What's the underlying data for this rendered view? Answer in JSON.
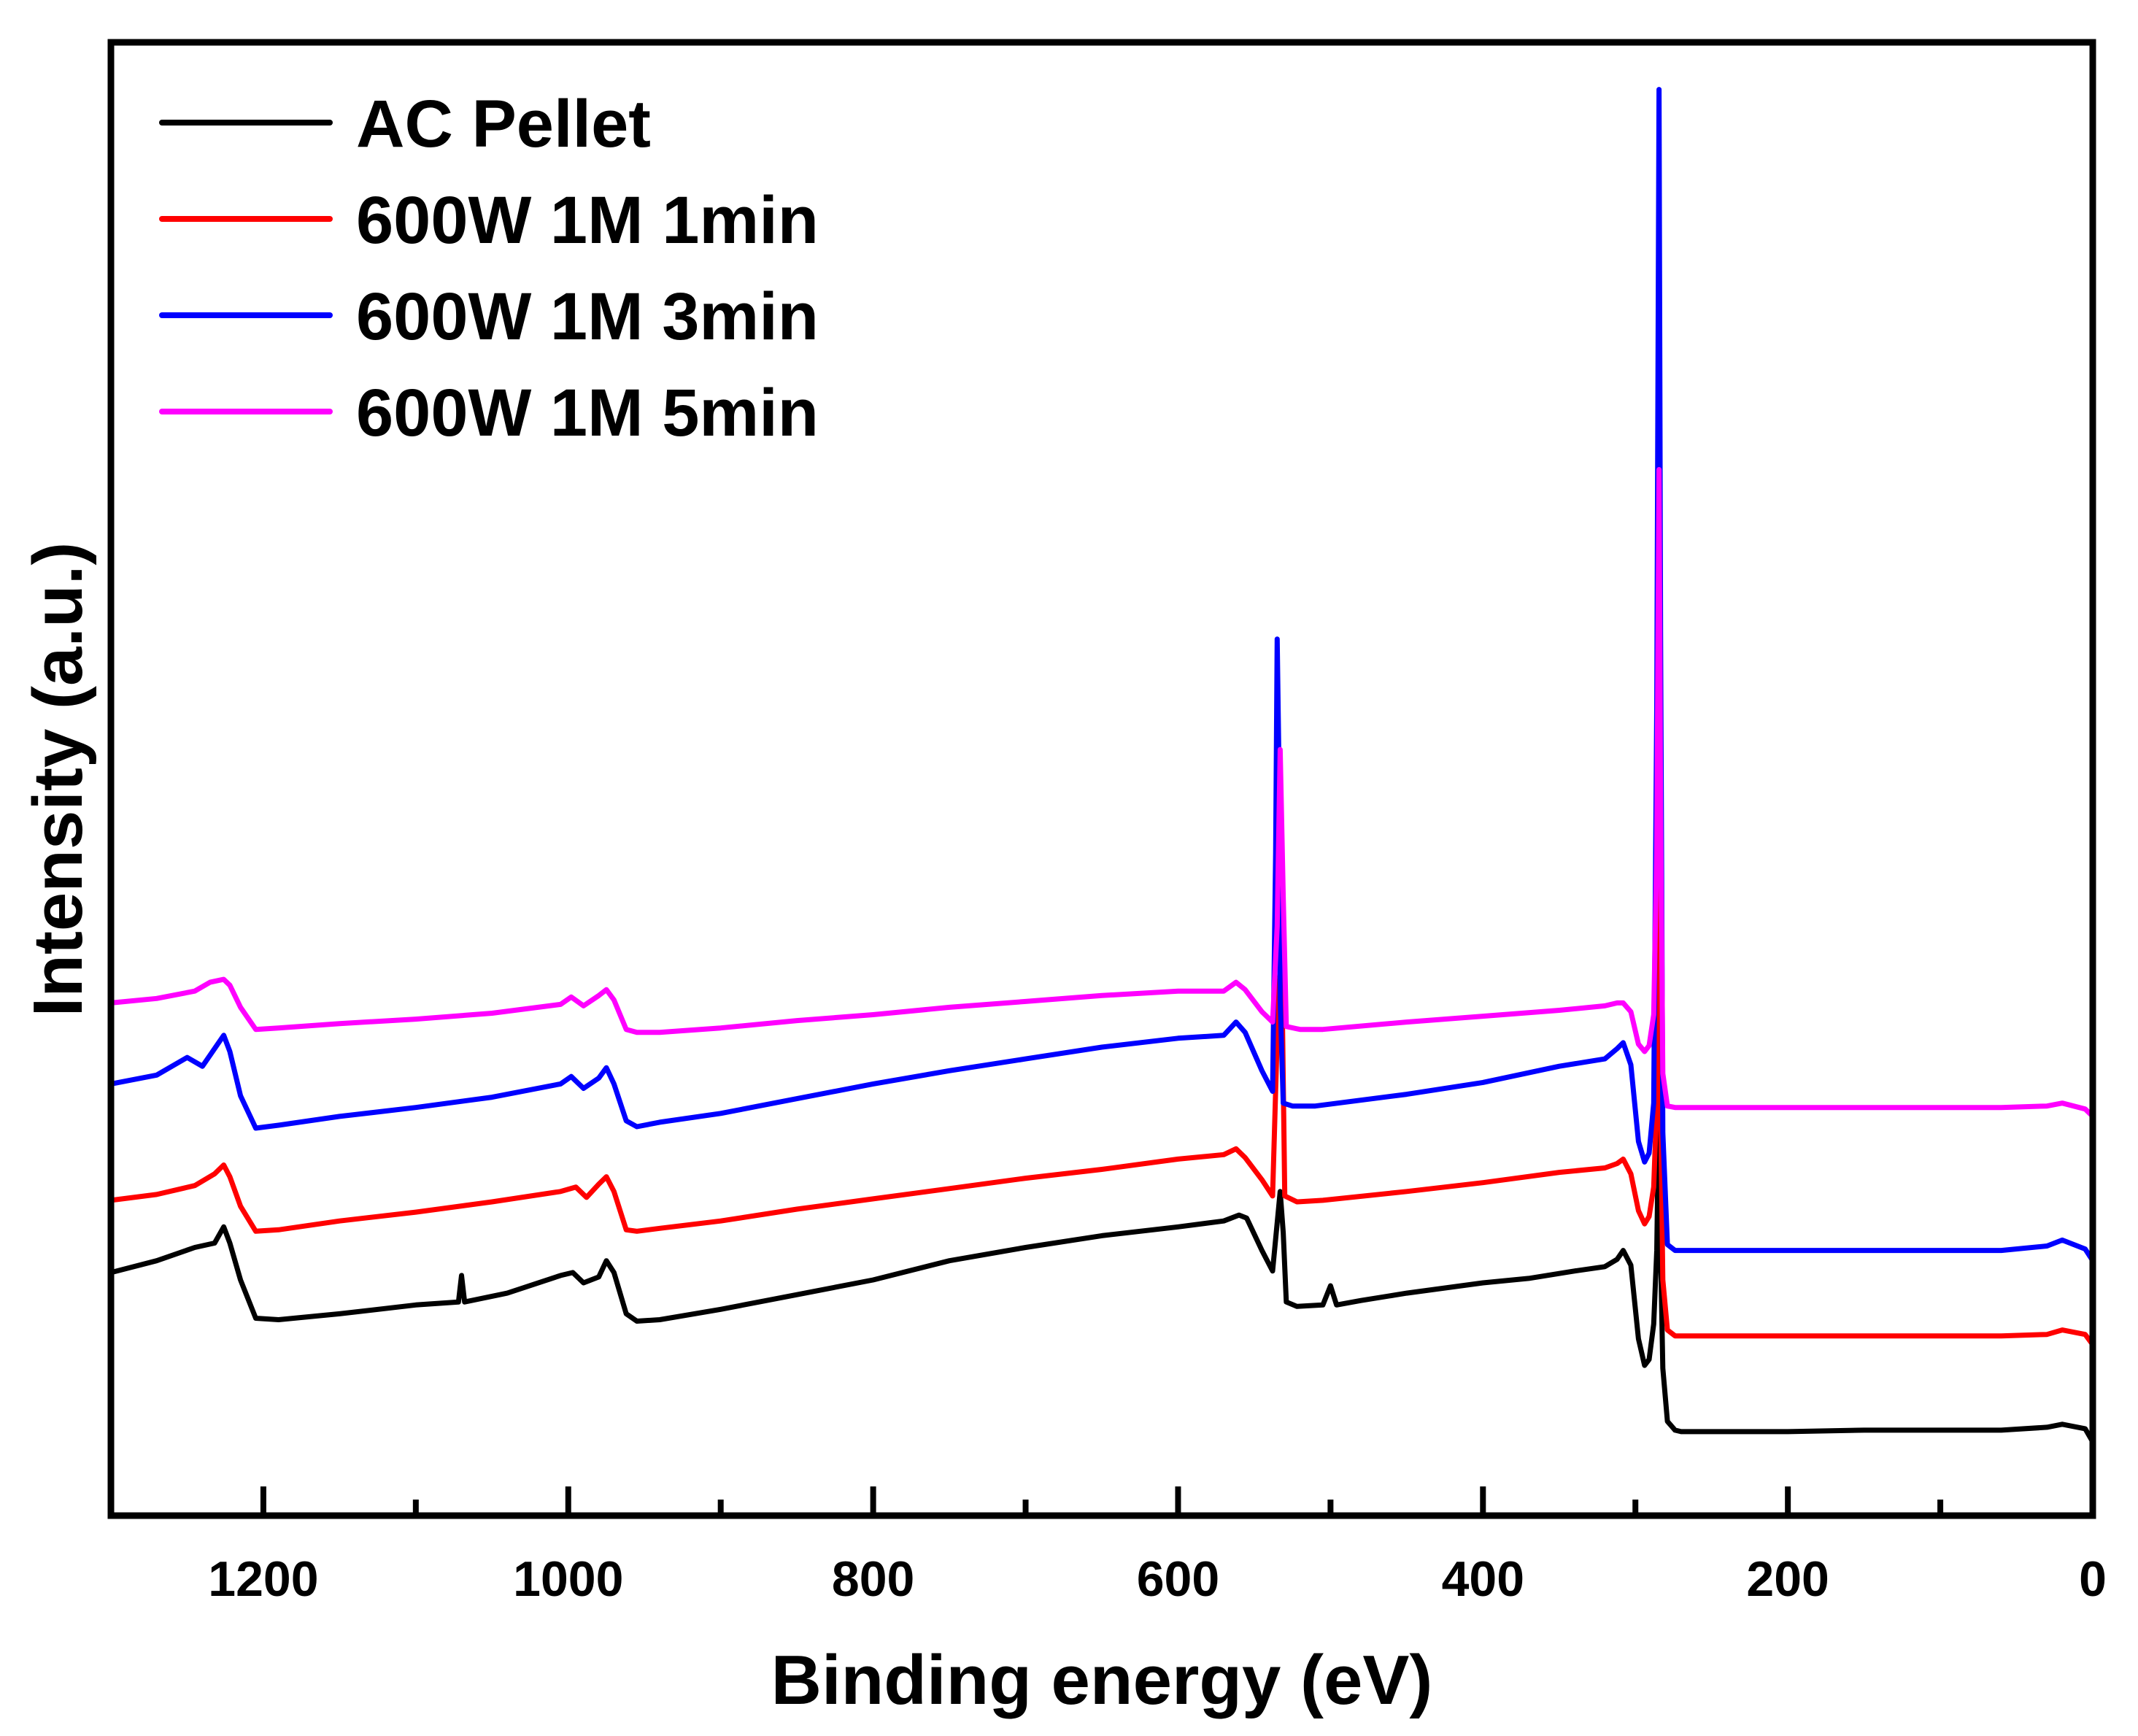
{
  "chart_data": {
    "type": "line",
    "title": "",
    "xlabel": "Binding energy (eV)",
    "ylabel": "Intensity (a.u.)",
    "xlim": [
      1300,
      0
    ],
    "ylim": [
      0,
      100
    ],
    "x_reversed": true,
    "xticks": [
      1200,
      1000,
      800,
      600,
      400,
      200,
      0
    ],
    "xticks_minor": [
      1100,
      900,
      700,
      500,
      300,
      100
    ],
    "yticks": [],
    "grid": false,
    "legend_position": "top-left",
    "series": [
      {
        "name": "AC Pellet",
        "color": "#000000",
        "points": [
          [
            1300,
            16.5
          ],
          [
            1270,
            17.3
          ],
          [
            1245,
            18.2
          ],
          [
            1232,
            18.5
          ],
          [
            1226,
            19.6
          ],
          [
            1222,
            18.5
          ],
          [
            1215,
            16.0
          ],
          [
            1205,
            13.4
          ],
          [
            1190,
            13.3
          ],
          [
            1150,
            13.7
          ],
          [
            1100,
            14.3
          ],
          [
            1072,
            14.5
          ],
          [
            1070,
            16.3
          ],
          [
            1068,
            14.5
          ],
          [
            1040,
            15.1
          ],
          [
            1005,
            16.3
          ],
          [
            997,
            16.5
          ],
          [
            990,
            15.8
          ],
          [
            980,
            16.2
          ],
          [
            975,
            17.3
          ],
          [
            970,
            16.5
          ],
          [
            962,
            13.7
          ],
          [
            955,
            13.2
          ],
          [
            940,
            13.3
          ],
          [
            900,
            14.0
          ],
          [
            850,
            15.0
          ],
          [
            800,
            16.0
          ],
          [
            750,
            17.3
          ],
          [
            700,
            18.2
          ],
          [
            650,
            19.0
          ],
          [
            600,
            19.6
          ],
          [
            570,
            20.0
          ],
          [
            560,
            20.4
          ],
          [
            555,
            20.2
          ],
          [
            545,
            18.0
          ],
          [
            538,
            16.6
          ],
          [
            533,
            22.0
          ],
          [
            531,
            19.2
          ],
          [
            529,
            14.5
          ],
          [
            522,
            14.2
          ],
          [
            505,
            14.3
          ],
          [
            500,
            15.6
          ],
          [
            496,
            14.3
          ],
          [
            480,
            14.6
          ],
          [
            450,
            15.1
          ],
          [
            400,
            15.8
          ],
          [
            370,
            16.1
          ],
          [
            340,
            16.6
          ],
          [
            320,
            16.9
          ],
          [
            312,
            17.4
          ],
          [
            308,
            18.0
          ],
          [
            303,
            17.0
          ],
          [
            298,
            12.0
          ],
          [
            294,
            10.2
          ],
          [
            291,
            10.6
          ],
          [
            288,
            13.0
          ],
          [
            286,
            18.0
          ],
          [
            284.5,
            29.0
          ],
          [
            283.5,
            18.0
          ],
          [
            282,
            10.0
          ],
          [
            279,
            6.4
          ],
          [
            274,
            5.8
          ],
          [
            270,
            5.7
          ],
          [
            240,
            5.7
          ],
          [
            200,
            5.7
          ],
          [
            150,
            5.8
          ],
          [
            100,
            5.8
          ],
          [
            60,
            5.8
          ],
          [
            30,
            6.0
          ],
          [
            20,
            6.2
          ],
          [
            5,
            5.9
          ],
          [
            0,
            5.0
          ]
        ]
      },
      {
        "name": "600W 1M 1min",
        "color": "#ff0000",
        "points": [
          [
            1300,
            21.4
          ],
          [
            1270,
            21.8
          ],
          [
            1245,
            22.4
          ],
          [
            1232,
            23.2
          ],
          [
            1226,
            23.8
          ],
          [
            1222,
            23.0
          ],
          [
            1215,
            21.0
          ],
          [
            1205,
            19.3
          ],
          [
            1190,
            19.4
          ],
          [
            1150,
            20.0
          ],
          [
            1100,
            20.6
          ],
          [
            1050,
            21.3
          ],
          [
            1005,
            22.0
          ],
          [
            995,
            22.3
          ],
          [
            988,
            21.6
          ],
          [
            980,
            22.5
          ],
          [
            975,
            23.0
          ],
          [
            970,
            22.0
          ],
          [
            962,
            19.4
          ],
          [
            955,
            19.3
          ],
          [
            940,
            19.5
          ],
          [
            900,
            20.0
          ],
          [
            850,
            20.8
          ],
          [
            800,
            21.5
          ],
          [
            750,
            22.2
          ],
          [
            700,
            22.9
          ],
          [
            650,
            23.5
          ],
          [
            600,
            24.2
          ],
          [
            570,
            24.5
          ],
          [
            562,
            24.9
          ],
          [
            556,
            24.3
          ],
          [
            545,
            22.8
          ],
          [
            538,
            21.7
          ],
          [
            534,
            36.0
          ],
          [
            532,
            37.5
          ],
          [
            530,
            21.7
          ],
          [
            522,
            21.3
          ],
          [
            505,
            21.4
          ],
          [
            450,
            22.0
          ],
          [
            400,
            22.6
          ],
          [
            350,
            23.3
          ],
          [
            320,
            23.6
          ],
          [
            312,
            23.9
          ],
          [
            308,
            24.2
          ],
          [
            303,
            23.2
          ],
          [
            298,
            20.7
          ],
          [
            294,
            19.8
          ],
          [
            291,
            20.3
          ],
          [
            288,
            22.3
          ],
          [
            286,
            28.0
          ],
          [
            284.5,
            44.6
          ],
          [
            283.5,
            28.0
          ],
          [
            282,
            16.0
          ],
          [
            279,
            12.6
          ],
          [
            274,
            12.2
          ],
          [
            240,
            12.2
          ],
          [
            200,
            12.2
          ],
          [
            150,
            12.2
          ],
          [
            100,
            12.2
          ],
          [
            60,
            12.2
          ],
          [
            30,
            12.3
          ],
          [
            20,
            12.6
          ],
          [
            5,
            12.3
          ],
          [
            0,
            11.6
          ]
        ]
      },
      {
        "name": "600W 1M 3min",
        "color": "#0000ff",
        "points": [
          [
            1300,
            29.3
          ],
          [
            1270,
            29.9
          ],
          [
            1250,
            31.1
          ],
          [
            1240,
            30.5
          ],
          [
            1232,
            31.7
          ],
          [
            1226,
            32.6
          ],
          [
            1222,
            31.5
          ],
          [
            1215,
            28.5
          ],
          [
            1205,
            26.3
          ],
          [
            1190,
            26.5
          ],
          [
            1150,
            27.1
          ],
          [
            1100,
            27.7
          ],
          [
            1050,
            28.4
          ],
          [
            1005,
            29.3
          ],
          [
            998,
            29.8
          ],
          [
            990,
            29.0
          ],
          [
            980,
            29.7
          ],
          [
            975,
            30.4
          ],
          [
            970,
            29.3
          ],
          [
            962,
            26.8
          ],
          [
            955,
            26.4
          ],
          [
            940,
            26.7
          ],
          [
            900,
            27.3
          ],
          [
            850,
            28.3
          ],
          [
            800,
            29.3
          ],
          [
            750,
            30.2
          ],
          [
            700,
            31.0
          ],
          [
            650,
            31.8
          ],
          [
            600,
            32.4
          ],
          [
            570,
            32.6
          ],
          [
            562,
            33.5
          ],
          [
            556,
            32.8
          ],
          [
            545,
            30.2
          ],
          [
            538,
            28.8
          ],
          [
            536,
            45.0
          ],
          [
            535,
            59.5
          ],
          [
            534,
            52.0
          ],
          [
            533,
            35.0
          ],
          [
            531,
            28.0
          ],
          [
            525,
            27.8
          ],
          [
            510,
            27.8
          ],
          [
            450,
            28.6
          ],
          [
            400,
            29.4
          ],
          [
            350,
            30.5
          ],
          [
            320,
            31.0
          ],
          [
            312,
            31.7
          ],
          [
            308,
            32.1
          ],
          [
            303,
            30.6
          ],
          [
            298,
            25.4
          ],
          [
            294,
            24.0
          ],
          [
            291,
            24.6
          ],
          [
            288,
            28.0
          ],
          [
            286,
            55.0
          ],
          [
            284.5,
            96.8
          ],
          [
            283.5,
            60.0
          ],
          [
            282,
            26.0
          ],
          [
            279,
            18.4
          ],
          [
            274,
            18.0
          ],
          [
            240,
            18.0
          ],
          [
            200,
            18.0
          ],
          [
            150,
            18.0
          ],
          [
            100,
            18.0
          ],
          [
            60,
            18.0
          ],
          [
            30,
            18.3
          ],
          [
            20,
            18.7
          ],
          [
            5,
            18.1
          ],
          [
            0,
            17.3
          ]
        ]
      },
      {
        "name": "600W 1M 5min",
        "color": "#ff00ff",
        "points": [
          [
            1300,
            34.8
          ],
          [
            1270,
            35.1
          ],
          [
            1245,
            35.6
          ],
          [
            1235,
            36.2
          ],
          [
            1226,
            36.4
          ],
          [
            1222,
            36.0
          ],
          [
            1215,
            34.5
          ],
          [
            1205,
            33.0
          ],
          [
            1190,
            33.1
          ],
          [
            1150,
            33.4
          ],
          [
            1100,
            33.7
          ],
          [
            1050,
            34.1
          ],
          [
            1005,
            34.7
          ],
          [
            998,
            35.2
          ],
          [
            990,
            34.6
          ],
          [
            980,
            35.3
          ],
          [
            975,
            35.7
          ],
          [
            970,
            35.0
          ],
          [
            962,
            33.0
          ],
          [
            955,
            32.8
          ],
          [
            940,
            32.8
          ],
          [
            900,
            33.1
          ],
          [
            850,
            33.6
          ],
          [
            800,
            34.0
          ],
          [
            750,
            34.5
          ],
          [
            700,
            34.9
          ],
          [
            650,
            35.3
          ],
          [
            600,
            35.6
          ],
          [
            570,
            35.6
          ],
          [
            562,
            36.2
          ],
          [
            556,
            35.7
          ],
          [
            545,
            34.2
          ],
          [
            538,
            33.5
          ],
          [
            535,
            40.0
          ],
          [
            533,
            52.0
          ],
          [
            531,
            42.0
          ],
          [
            529,
            33.2
          ],
          [
            520,
            33.0
          ],
          [
            505,
            33.0
          ],
          [
            450,
            33.5
          ],
          [
            400,
            33.9
          ],
          [
            350,
            34.3
          ],
          [
            320,
            34.6
          ],
          [
            312,
            34.8
          ],
          [
            308,
            34.8
          ],
          [
            303,
            34.2
          ],
          [
            298,
            32.0
          ],
          [
            294,
            31.5
          ],
          [
            291,
            31.9
          ],
          [
            288,
            34.0
          ],
          [
            286,
            45.0
          ],
          [
            284.5,
            71.0
          ],
          [
            283.5,
            48.0
          ],
          [
            282,
            30.0
          ],
          [
            279,
            27.8
          ],
          [
            274,
            27.7
          ],
          [
            240,
            27.7
          ],
          [
            200,
            27.7
          ],
          [
            150,
            27.7
          ],
          [
            100,
            27.7
          ],
          [
            60,
            27.7
          ],
          [
            30,
            27.8
          ],
          [
            20,
            28.0
          ],
          [
            5,
            27.6
          ],
          [
            0,
            27.1
          ]
        ]
      }
    ]
  }
}
